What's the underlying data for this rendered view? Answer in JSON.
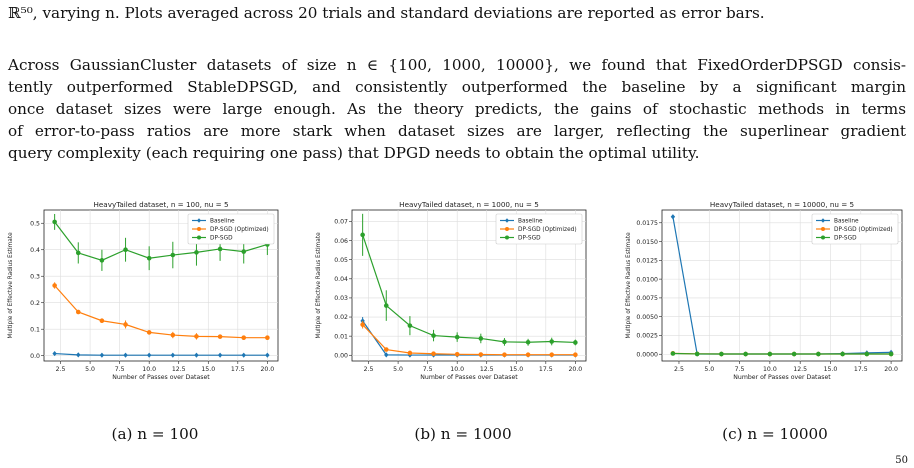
{
  "text": {
    "first_line": "ℝ⁵⁰, varying n. Plots averaged across 20 trials and standard deviations are reported as error bars.",
    "para_lines": [
      "Across GaussianCluster datasets of size n ∈ {100, 1000, 10000}, we found that FixedOrderDPSGD consis-",
      "tently outperformed StableDPSGD, and consistently outperformed the baseline by a significant margin",
      "once dataset sizes were large enough. As the theory predicts, the gains of stochastic methods in terms",
      "of error-to-pass ratios are more stark when dataset sizes are larger, reflecting the superlinear gradient",
      "query complexity (each requiring one pass) that DPGD needs to obtain the optimal utility."
    ],
    "page_number": "50"
  },
  "captions": [
    "(a) n = 100",
    "(b) n = 1000",
    "(c) n = 10000"
  ],
  "chart_data": [
    {
      "type": "line",
      "title": "HeavyTailed dataset, n = 100, nu = 5",
      "xlabel": "Number of Passes over Dataset",
      "ylabel": "Multiple of Effective Radius Estimate",
      "x": [
        2,
        4,
        6,
        8,
        10,
        12,
        14,
        16,
        18,
        20
      ],
      "xlim": [
        1.1,
        20.9
      ],
      "ylim": [
        -0.02,
        0.55
      ],
      "xticks": [
        2.5,
        5.0,
        7.5,
        10.0,
        12.5,
        15.0,
        17.5,
        20.0
      ],
      "yticks": [
        0.0,
        0.1,
        0.2,
        0.3,
        0.4,
        0.5
      ],
      "legend_position": "top-right",
      "grid": true,
      "series": [
        {
          "name": "Baseline",
          "color": "#1f77b4",
          "marker": "diamond",
          "values": [
            0.008,
            0.003,
            0.002,
            0.002,
            0.002,
            0.002,
            0.002,
            0.002,
            0.002,
            0.002
          ],
          "errors": [
            0.002,
            0.001,
            0.001,
            0.001,
            0.001,
            0.001,
            0.001,
            0.001,
            0.001,
            0.001
          ]
        },
        {
          "name": "DP-SGD (Optimized)",
          "color": "#ff7f0e",
          "marker": "circle",
          "values": [
            0.265,
            0.165,
            0.132,
            0.118,
            0.088,
            0.078,
            0.073,
            0.072,
            0.068,
            0.068
          ],
          "errors": [
            0.012,
            0.008,
            0.008,
            0.015,
            0.008,
            0.012,
            0.012,
            0.008,
            0.006,
            0.008
          ]
        },
        {
          "name": "DP-SGD",
          "color": "#2ca02c",
          "marker": "circle",
          "values": [
            0.505,
            0.388,
            0.36,
            0.4,
            0.368,
            0.38,
            0.39,
            0.403,
            0.393,
            0.42
          ],
          "errors": [
            0.03,
            0.04,
            0.04,
            0.045,
            0.045,
            0.05,
            0.05,
            0.045,
            0.045,
            0.04
          ]
        }
      ]
    },
    {
      "type": "line",
      "title": "HeavyTailed dataset, n = 1000, nu = 5",
      "xlabel": "Number of Passes over Dataset",
      "ylabel": "Multiple of Effective Radius Estimate",
      "x": [
        2,
        4,
        6,
        8,
        10,
        12,
        14,
        16,
        18,
        20
      ],
      "xlim": [
        1.1,
        20.9
      ],
      "ylim": [
        -0.003,
        0.076
      ],
      "xticks": [
        2.5,
        5.0,
        7.5,
        10.0,
        12.5,
        15.0,
        17.5,
        20.0
      ],
      "yticks": [
        0.0,
        0.01,
        0.02,
        0.03,
        0.04,
        0.05,
        0.06,
        0.07
      ],
      "legend_position": "top-right",
      "grid": true,
      "series": [
        {
          "name": "Baseline",
          "color": "#1f77b4",
          "marker": "diamond",
          "values": [
            0.018,
            0.0002,
            0.0001,
            0.0001,
            0.0001,
            0.0001,
            0.0001,
            0.0001,
            0.0001,
            0.0001
          ],
          "errors": [
            0.002,
            0.0002,
            0.0001,
            0.0001,
            0.0001,
            0.0001,
            0.0001,
            0.0001,
            0.0001,
            0.0001
          ]
        },
        {
          "name": "DP-SGD (Optimized)",
          "color": "#ff7f0e",
          "marker": "circle",
          "values": [
            0.016,
            0.003,
            0.0012,
            0.0008,
            0.0005,
            0.0004,
            0.0003,
            0.0003,
            0.0003,
            0.0003
          ],
          "errors": [
            0.002,
            0.001,
            0.0005,
            0.0003,
            0.0002,
            0.0002,
            0.0001,
            0.0001,
            0.0001,
            0.0001
          ]
        },
        {
          "name": "DP-SGD",
          "color": "#2ca02c",
          "marker": "circle",
          "values": [
            0.063,
            0.026,
            0.0155,
            0.0103,
            0.0095,
            0.0088,
            0.007,
            0.0068,
            0.0072,
            0.0067
          ],
          "errors": [
            0.011,
            0.008,
            0.005,
            0.003,
            0.0025,
            0.0025,
            0.002,
            0.0018,
            0.002,
            0.0015
          ]
        }
      ]
    },
    {
      "type": "line",
      "title": "HeavyTailed dataset, n = 10000, nu = 5",
      "xlabel": "Number of Passes over Dataset",
      "ylabel": "Multiple of Effective Radius Estimate",
      "x": [
        2,
        4,
        6,
        8,
        10,
        12,
        14,
        16,
        18,
        20
      ],
      "xlim": [
        1.1,
        20.9
      ],
      "ylim": [
        -0.0009,
        0.0192
      ],
      "xticks": [
        2.5,
        5.0,
        7.5,
        10.0,
        12.5,
        15.0,
        17.5,
        20.0
      ],
      "yticks": [
        0.0,
        0.0025,
        0.005,
        0.0075,
        0.01,
        0.0125,
        0.015,
        0.0175
      ],
      "ytick_labels": [
        "0.0000",
        "0.0025",
        "0.0050",
        "0.0075",
        "0.0100",
        "0.0125",
        "0.0150",
        "0.0175"
      ],
      "legend_position": "top-right",
      "grid": true,
      "series": [
        {
          "name": "Baseline",
          "color": "#1f77b4",
          "marker": "diamond",
          "values": [
            0.0183,
            3e-05,
            3e-05,
            3e-05,
            3e-05,
            3e-05,
            3e-05,
            8e-05,
            0.00018,
            0.00025
          ],
          "errors": [
            0.0002,
            1e-05,
            1e-05,
            1e-05,
            1e-05,
            1e-05,
            1e-05,
            2e-05,
            3e-05,
            3e-05
          ]
        },
        {
          "name": "DP-SGD (Optimized)",
          "color": "#ff7f0e",
          "marker": "circle",
          "values": [
            0.00012,
            5e-05,
            3e-05,
            3e-05,
            3e-05,
            3e-05,
            3e-05,
            3e-05,
            3e-05,
            3e-05
          ],
          "errors": [
            2e-05,
            1e-05,
            1e-05,
            1e-05,
            1e-05,
            1e-05,
            1e-05,
            1e-05,
            1e-05,
            1e-05
          ]
        },
        {
          "name": "DP-SGD",
          "color": "#2ca02c",
          "marker": "circle",
          "values": [
            0.0001,
            4e-05,
            3e-05,
            3e-05,
            3e-05,
            3e-05,
            3e-05,
            3e-05,
            3e-05,
            3e-05
          ],
          "errors": [
            2e-05,
            1e-05,
            1e-05,
            1e-05,
            1e-05,
            1e-05,
            1e-05,
            1e-05,
            1e-05,
            1e-05
          ]
        }
      ]
    }
  ]
}
